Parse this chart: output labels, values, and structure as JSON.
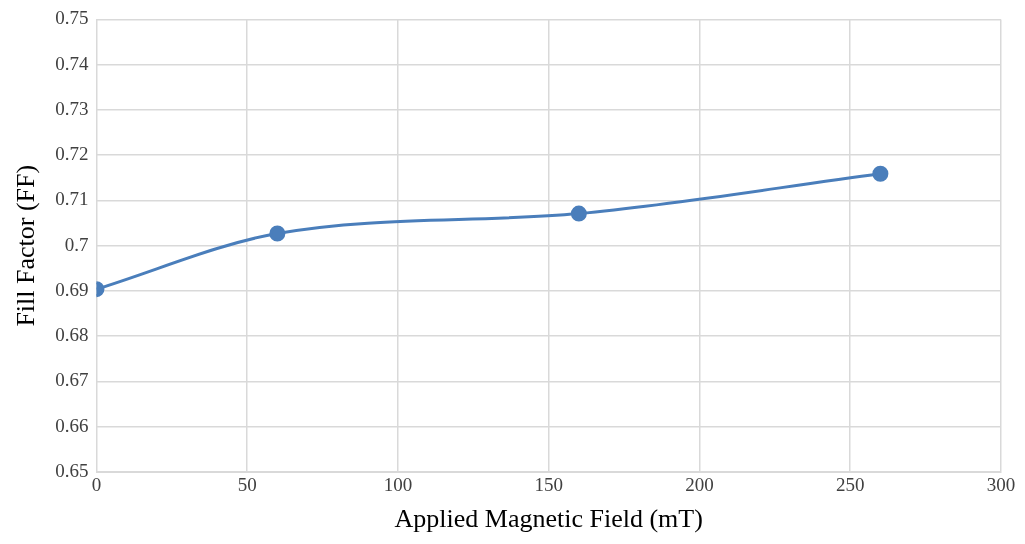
{
  "chart_data": {
    "type": "line",
    "xlabel": "Applied Magnetic Field (mT)",
    "ylabel": "Fill Factor (FF)",
    "x": [
      0,
      60,
      160,
      260
    ],
    "series": [
      {
        "color": "#4a7ebb",
        "values": [
          0.6904,
          0.7027,
          0.7071,
          0.7159
        ]
      }
    ],
    "xlim": [
      0,
      300
    ],
    "xticks": [
      0,
      50,
      100,
      150,
      200,
      250,
      300
    ],
    "ylim": [
      0.65,
      0.75
    ],
    "yticks": [
      0.65,
      0.66,
      0.67,
      0.68,
      0.69,
      0.7,
      0.71,
      0.72,
      0.73,
      0.74,
      0.75
    ],
    "grid": true,
    "legend": false,
    "marker": "circle",
    "line_style": "solid"
  }
}
